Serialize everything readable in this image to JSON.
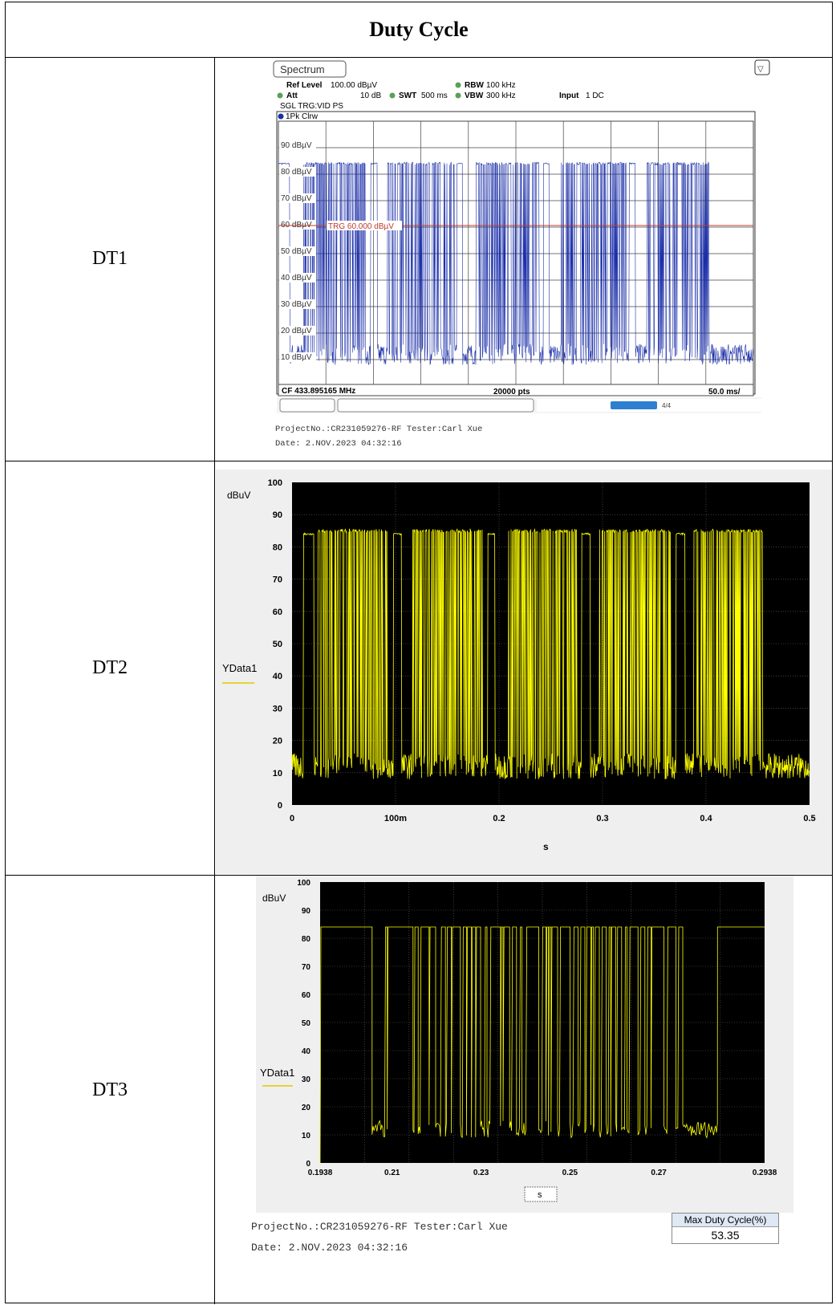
{
  "table": {
    "header": "Duty Cycle",
    "rows": [
      {
        "label": "DT1"
      },
      {
        "label": "DT2"
      },
      {
        "label": "DT3"
      }
    ]
  },
  "dt1": {
    "tab": "Spectrum",
    "ref_level_label": "Ref Level",
    "ref_level_value": "100.00 dBµV",
    "rbw_label": "RBW",
    "rbw_value": "100 kHz",
    "att_label": "Att",
    "att_value": "10 dB",
    "swt_label": "SWT",
    "swt_value": "500 ms",
    "vbw_label": "VBW",
    "vbw_value": "300 kHz",
    "input_label": "Input",
    "input_value": "1 DC",
    "trigger": "SGL TRG:VID PS",
    "trace": "1Pk Clrw",
    "y_labels": [
      "90 dBµV",
      "80 dBµV",
      "70 dBµV",
      "60 dBµV",
      "50 dBµV",
      "40 dBµV",
      "30 dBµV",
      "20 dBµV",
      "10 dBµV"
    ],
    "trigger_line": "TRG 60.000 dBµV",
    "cf": "CF 433.895165 MHz",
    "pts": "20000 pts",
    "div": "50.0 ms/",
    "colors": {
      "trace": "#1a2ea8",
      "trigger": "#c0392b"
    }
  },
  "dt1_footer": {
    "project": "ProjectNo.:CR231059276-RF  Tester:Carl Xue",
    "date": "Date: 2.NOV.2023  04:32:16"
  },
  "dt2": {
    "unit": "dBuV",
    "legend": "YData1",
    "y_ticks": [
      "100",
      "90",
      "80",
      "70",
      "60",
      "50",
      "40",
      "30",
      "20",
      "10",
      "0"
    ],
    "x_ticks": [
      "0",
      "100m",
      "0.2",
      "0.3",
      "0.4",
      "0.5"
    ],
    "xlabel": "s",
    "colors": {
      "trace": "#ffff00",
      "background": "#000000"
    }
  },
  "dt3": {
    "unit": "dBuV",
    "legend": "YData1",
    "y_ticks": [
      "100",
      "90",
      "80",
      "70",
      "60",
      "50",
      "40",
      "30",
      "20",
      "10",
      "0"
    ],
    "x_ticks": [
      "0.1938",
      "0.21",
      "0.23",
      "0.25",
      "0.27",
      "0.2938"
    ],
    "xlabel": "s",
    "max_duty_label": "Max Duty Cycle(%)",
    "max_duty_value": "53.35",
    "project": "ProjectNo.:CR231059276-RF   Tester:Carl Xue",
    "date": "Date: 2.NOV.2023  04:32:16"
  },
  "chart_data": [
    {
      "type": "line",
      "ylabel": "dBµV",
      "ylim": [
        0,
        100
      ],
      "xlim": [
        0,
        0.5
      ],
      "series": [
        {
          "values_high": 84,
          "values_low": 12
        }
      ],
      "bursts_s": [
        [
          0.025,
          0.093
        ],
        [
          0.115,
          0.185
        ],
        [
          0.207,
          0.275
        ],
        [
          0.297,
          0.366
        ],
        [
          0.388,
          0.455
        ]
      ]
    },
    {
      "type": "line",
      "ylabel": "dBuV",
      "xlabel": "s",
      "ylim": [
        0,
        100
      ],
      "xlim": [
        0,
        0.5
      ],
      "series": [
        {
          "name": "YData1",
          "values_high": 85,
          "values_low": 12
        }
      ],
      "bursts_s": [
        [
          0.025,
          0.093
        ],
        [
          0.115,
          0.185
        ],
        [
          0.207,
          0.275
        ],
        [
          0.297,
          0.366
        ],
        [
          0.388,
          0.455
        ]
      ]
    },
    {
      "type": "line",
      "ylabel": "dBuV",
      "xlabel": "s",
      "ylim": [
        0,
        100
      ],
      "xlim": [
        0.1938,
        0.2938
      ],
      "series": [
        {
          "name": "YData1",
          "values_high": 84,
          "values_low": 12
        }
      ],
      "pre_level": [
        0.1938,
        0.2055,
        84
      ],
      "burst_s": [
        0.2055,
        0.2745
      ],
      "post_level": [
        0.2832,
        0.2938,
        84
      ]
    }
  ]
}
